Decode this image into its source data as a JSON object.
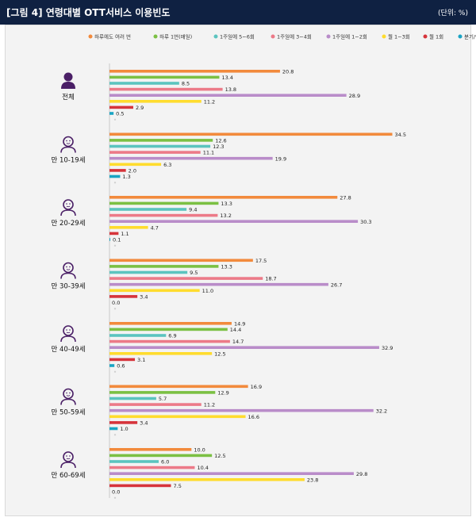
{
  "header": {
    "title": "[그림 4]  연령대별 OTT서비스 이용빈도",
    "unit": "(단위: %)"
  },
  "colors": {
    "header_bg": "#0f2142",
    "icon": "#4a1f66",
    "axis": "#c8c8c8"
  },
  "chart_data": {
    "type": "bar",
    "orientation": "horizontal",
    "categories": [
      "전체",
      "만 10-19세",
      "만 20-29세",
      "만 30-39세",
      "만 40-49세",
      "만 50-59세",
      "만 60-69세"
    ],
    "series": [
      {
        "name": "하루에도 여러 번",
        "color": "#f28a3c",
        "values": [
          20.8,
          34.5,
          27.8,
          17.5,
          14.9,
          16.9,
          10.0
        ]
      },
      {
        "name": "하루 1번(매일)",
        "color": "#7bc043",
        "values": [
          13.4,
          12.6,
          13.3,
          13.3,
          14.4,
          12.9,
          12.5
        ]
      },
      {
        "name": "1주일에 5~6회",
        "color": "#5bc4bf",
        "values": [
          8.5,
          12.3,
          9.4,
          9.5,
          6.9,
          5.7,
          6.0
        ]
      },
      {
        "name": "1주일에 3~4회",
        "color": "#ec7a88",
        "values": [
          13.8,
          11.1,
          13.2,
          18.7,
          14.7,
          11.2,
          10.4
        ]
      },
      {
        "name": "1주일에 1~2회",
        "color": "#b98cc9",
        "values": [
          28.9,
          19.9,
          30.3,
          26.7,
          32.9,
          32.2,
          29.8
        ]
      },
      {
        "name": "월 1~3회",
        "color": "#ffdc2e",
        "values": [
          11.2,
          6.3,
          4.7,
          11.0,
          12.5,
          16.6,
          23.8
        ]
      },
      {
        "name": "월 1회",
        "color": "#d6343b",
        "values": [
          2.9,
          2.0,
          1.1,
          3.4,
          3.1,
          3.4,
          7.5
        ]
      },
      {
        "name": "분기/연간 1회",
        "color": "#1aa4c4",
        "values": [
          0.5,
          1.3,
          0.1,
          0.0,
          0.6,
          1.0,
          0.0
        ]
      }
    ],
    "value_labels": [
      [
        "20.8",
        "13.4",
        "8.5",
        "13.8",
        "28.9",
        "11.2",
        "2.9",
        "0.5"
      ],
      [
        "34.5",
        "12.6",
        "12.3",
        "11.1",
        "19.9",
        "6.3",
        "2.0",
        "1.3"
      ],
      [
        "27.8",
        "13.3",
        "9.4",
        "13.2",
        "30.3",
        "4.7",
        "1.1",
        "0.1"
      ],
      [
        "17.5",
        "13.3",
        "9.5",
        "18.7",
        "26.7",
        "11.0",
        "3.4",
        "0.0"
      ],
      [
        "14.9",
        "14.4",
        "6.9",
        "14.7",
        "32.9",
        "12.5",
        "3.1",
        "0.6"
      ],
      [
        "16.9",
        "12.9",
        "5.7",
        "11.2",
        "32.2",
        "16.6",
        "3.4",
        "1.0"
      ],
      [
        "10.0",
        "12.5",
        "6.0",
        "10.4",
        "29.8",
        "23.8",
        "7.5",
        "0.0"
      ]
    ],
    "xlim": [
      0,
      36
    ],
    "grid": false,
    "legend_position": "top"
  }
}
